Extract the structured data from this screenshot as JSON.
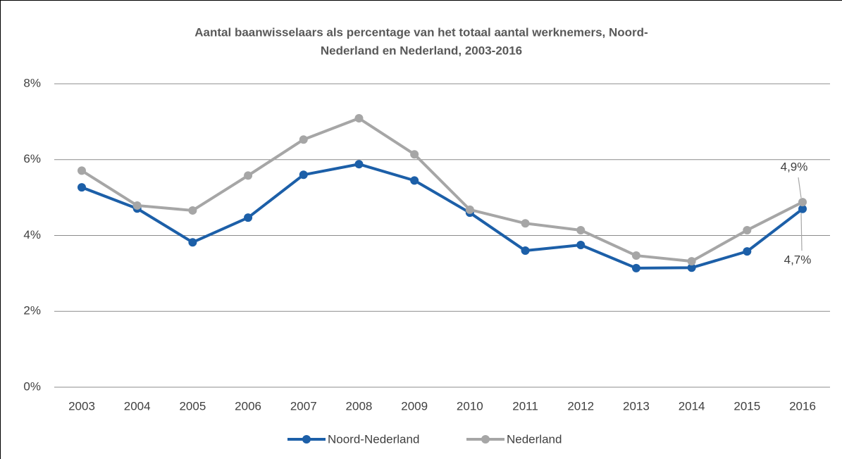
{
  "chart_data": {
    "type": "line",
    "title": [
      "Aantal baanwisselaars als percentage van het totaal aantal werknemers, Noord-",
      "Nederland en Nederland, 2003-2016"
    ],
    "categories": [
      "2003",
      "2004",
      "2005",
      "2006",
      "2007",
      "2008",
      "2009",
      "2010",
      "2011",
      "2012",
      "2013",
      "2014",
      "2015",
      "2016"
    ],
    "series": [
      {
        "name": "Noord-Nederland",
        "color": "#1c5fa8",
        "values": [
          5.27,
          4.71,
          3.82,
          4.47,
          5.6,
          5.88,
          5.45,
          4.6,
          3.6,
          3.75,
          3.14,
          3.15,
          3.58,
          4.7
        ],
        "value_labels": [
          null,
          null,
          null,
          null,
          null,
          null,
          null,
          null,
          null,
          null,
          null,
          null,
          null,
          "4,7%"
        ]
      },
      {
        "name": "Nederland",
        "color": "#a6a6a6",
        "values": [
          5.71,
          4.79,
          4.66,
          5.58,
          6.53,
          7.09,
          6.14,
          4.68,
          4.32,
          4.14,
          3.47,
          3.32,
          4.14,
          4.88
        ],
        "value_labels": [
          null,
          null,
          null,
          null,
          null,
          null,
          null,
          null,
          null,
          null,
          null,
          null,
          null,
          "4,9%"
        ]
      }
    ],
    "ylim": [
      0,
      8
    ],
    "yticks": [
      {
        "value": 0,
        "label": "0%"
      },
      {
        "value": 2,
        "label": "2%"
      },
      {
        "value": 4,
        "label": "4%"
      },
      {
        "value": 6,
        "label": "6%"
      },
      {
        "value": 8,
        "label": "8%"
      }
    ],
    "grid": true,
    "legend": "bottom"
  }
}
